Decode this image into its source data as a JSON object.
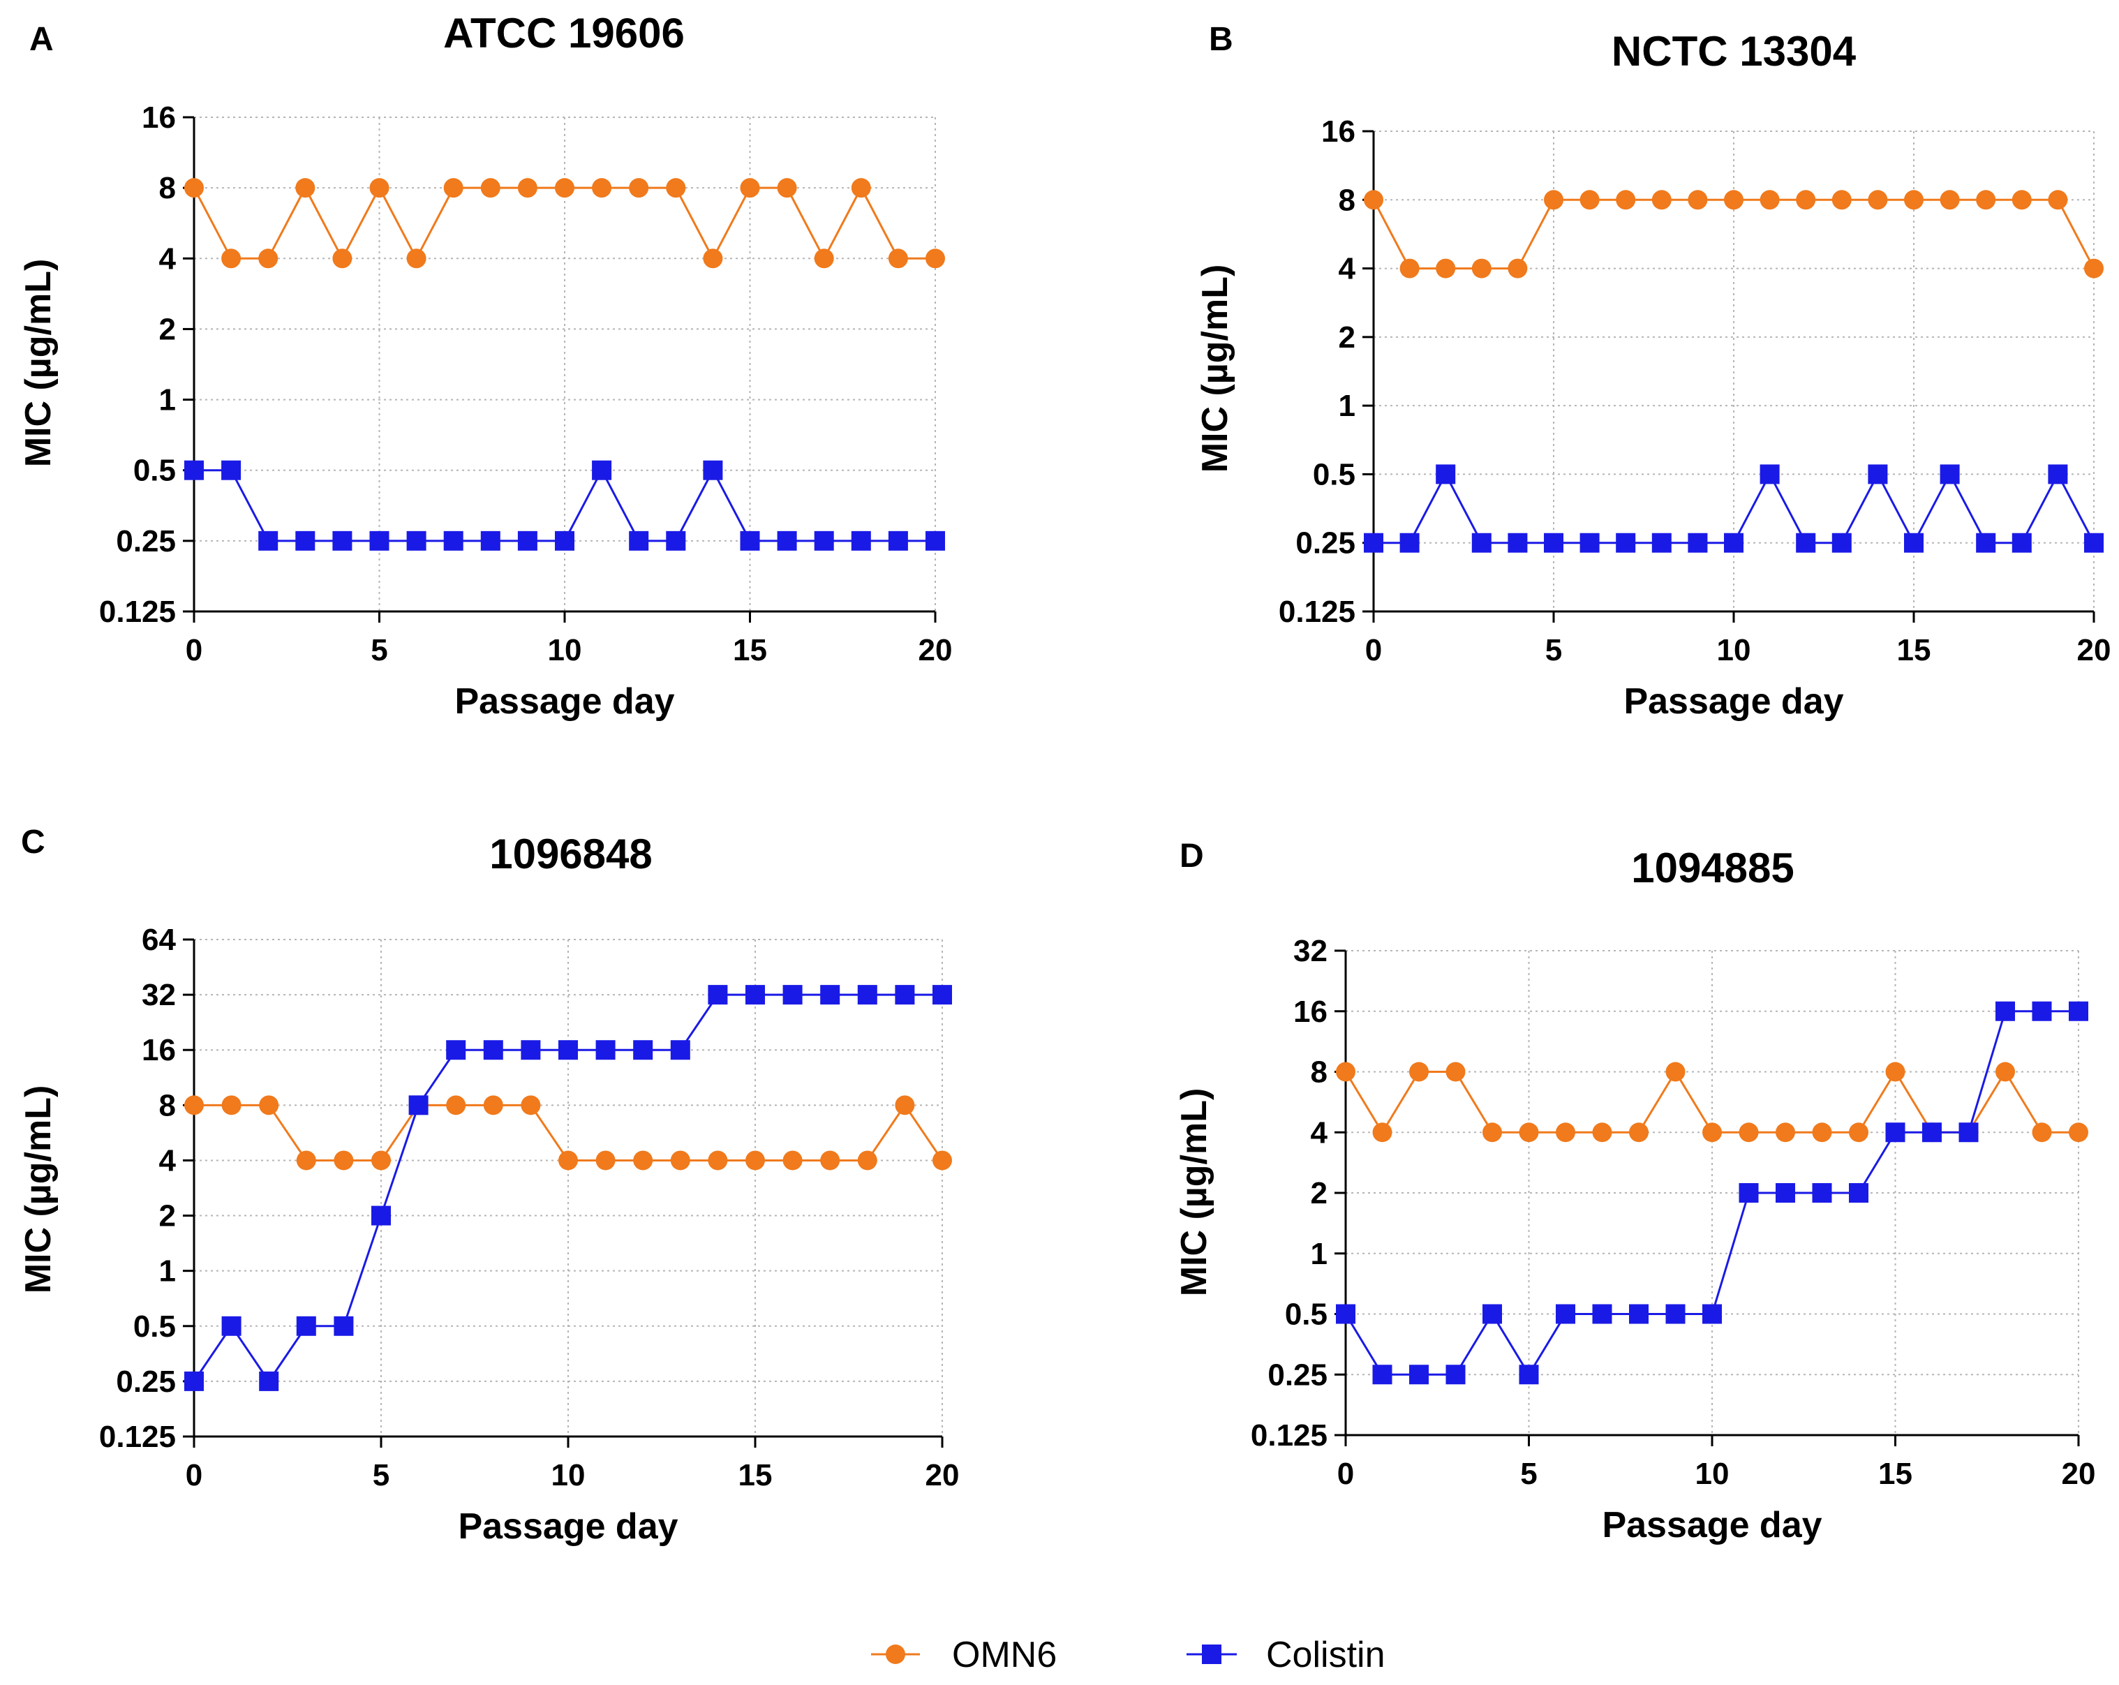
{
  "figure": {
    "legend": [
      {
        "name": "OMN6",
        "color": "#F07A1C",
        "marker": "circle"
      },
      {
        "name": "Colistin",
        "color": "#1A1AE6",
        "marker": "square"
      }
    ]
  },
  "chart_data": [
    {
      "type": "line",
      "panel": "A",
      "title": "ATCC 19606",
      "xlabel": "Passage day",
      "ylabel": "MIC (µg/mL)",
      "yscale": "log2",
      "ylim": [
        0.125,
        16
      ],
      "xlim": [
        0,
        20
      ],
      "grid": true,
      "x_ticks": [
        "0",
        "5",
        "10",
        "15",
        "20"
      ],
      "y_ticks": [
        "0.125",
        "0.25",
        "0.5",
        "1",
        "2",
        "4",
        "8",
        "16"
      ],
      "x": [
        0,
        1,
        2,
        3,
        4,
        5,
        6,
        7,
        8,
        9,
        10,
        11,
        12,
        13,
        14,
        15,
        16,
        17,
        18,
        19,
        20
      ],
      "series": [
        {
          "name": "OMN6",
          "values": [
            8,
            4,
            4,
            8,
            4,
            8,
            4,
            8,
            8,
            8,
            8,
            8,
            8,
            8,
            4,
            8,
            8,
            4,
            8,
            4,
            4
          ]
        },
        {
          "name": "Colistin",
          "values": [
            0.5,
            0.5,
            0.25,
            0.25,
            0.25,
            0.25,
            0.25,
            0.25,
            0.25,
            0.25,
            0.25,
            0.5,
            0.25,
            0.25,
            0.5,
            0.25,
            0.25,
            0.25,
            0.25,
            0.25,
            0.25
          ]
        }
      ]
    },
    {
      "type": "line",
      "panel": "B",
      "title": "NCTC 13304",
      "xlabel": "Passage day",
      "ylabel": "MIC (µg/mL)",
      "yscale": "log2",
      "ylim": [
        0.125,
        16
      ],
      "xlim": [
        0,
        20
      ],
      "grid": true,
      "x_ticks": [
        "0",
        "5",
        "10",
        "15",
        "20"
      ],
      "y_ticks": [
        "0.125",
        "0.25",
        "0.5",
        "1",
        "2",
        "4",
        "8",
        "16"
      ],
      "x": [
        0,
        1,
        2,
        3,
        4,
        5,
        6,
        7,
        8,
        9,
        10,
        11,
        12,
        13,
        14,
        15,
        16,
        17,
        18,
        19,
        20
      ],
      "series": [
        {
          "name": "OMN6",
          "values": [
            8,
            4,
            4,
            4,
            4,
            8,
            8,
            8,
            8,
            8,
            8,
            8,
            8,
            8,
            8,
            8,
            8,
            8,
            8,
            8,
            4
          ]
        },
        {
          "name": "Colistin",
          "values": [
            0.25,
            0.25,
            0.5,
            0.25,
            0.25,
            0.25,
            0.25,
            0.25,
            0.25,
            0.25,
            0.25,
            0.5,
            0.25,
            0.25,
            0.5,
            0.25,
            0.5,
            0.25,
            0.25,
            0.5,
            0.25
          ]
        }
      ]
    },
    {
      "type": "line",
      "panel": "C",
      "title": "1096848",
      "xlabel": "Passage day",
      "ylabel": "MIC (µg/mL)",
      "yscale": "log2",
      "ylim": [
        0.125,
        64
      ],
      "xlim": [
        0,
        20
      ],
      "grid": true,
      "x_ticks": [
        "0",
        "5",
        "10",
        "15",
        "20"
      ],
      "y_ticks": [
        "0.125",
        "0.25",
        "0.5",
        "1",
        "2",
        "4",
        "8",
        "16",
        "32",
        "64"
      ],
      "x": [
        0,
        1,
        2,
        3,
        4,
        5,
        6,
        7,
        8,
        9,
        10,
        11,
        12,
        13,
        14,
        15,
        16,
        17,
        18,
        19,
        20
      ],
      "series": [
        {
          "name": "OMN6",
          "values": [
            8,
            8,
            8,
            4,
            4,
            4,
            8,
            8,
            8,
            8,
            4,
            4,
            4,
            4,
            4,
            4,
            4,
            4,
            4,
            8,
            4
          ]
        },
        {
          "name": "Colistin",
          "values": [
            0.25,
            0.5,
            0.25,
            0.5,
            0.5,
            2,
            8,
            16,
            16,
            16,
            16,
            16,
            16,
            16,
            32,
            32,
            32,
            32,
            32,
            32,
            32
          ]
        }
      ]
    },
    {
      "type": "line",
      "panel": "D",
      "title": "1094885",
      "xlabel": "Passage day",
      "ylabel": "MIC (µg/mL)",
      "yscale": "log2",
      "ylim": [
        0.125,
        32
      ],
      "xlim": [
        0,
        20
      ],
      "grid": true,
      "x_ticks": [
        "0",
        "5",
        "10",
        "15",
        "20"
      ],
      "y_ticks": [
        "0.125",
        "0.25",
        "0.5",
        "1",
        "2",
        "4",
        "8",
        "16",
        "32"
      ],
      "x": [
        0,
        1,
        2,
        3,
        4,
        5,
        6,
        7,
        8,
        9,
        10,
        11,
        12,
        13,
        14,
        15,
        16,
        17,
        18,
        19,
        20
      ],
      "series": [
        {
          "name": "OMN6",
          "values": [
            8,
            4,
            8,
            8,
            4,
            4,
            4,
            4,
            4,
            8,
            4,
            4,
            4,
            4,
            4,
            8,
            4,
            4,
            8,
            4,
            4
          ]
        },
        {
          "name": "Colistin",
          "values": [
            0.5,
            0.25,
            0.25,
            0.25,
            0.5,
            0.25,
            0.5,
            0.5,
            0.5,
            0.5,
            0.5,
            2,
            2,
            2,
            2,
            4,
            4,
            4,
            16,
            16,
            16
          ]
        }
      ]
    }
  ]
}
